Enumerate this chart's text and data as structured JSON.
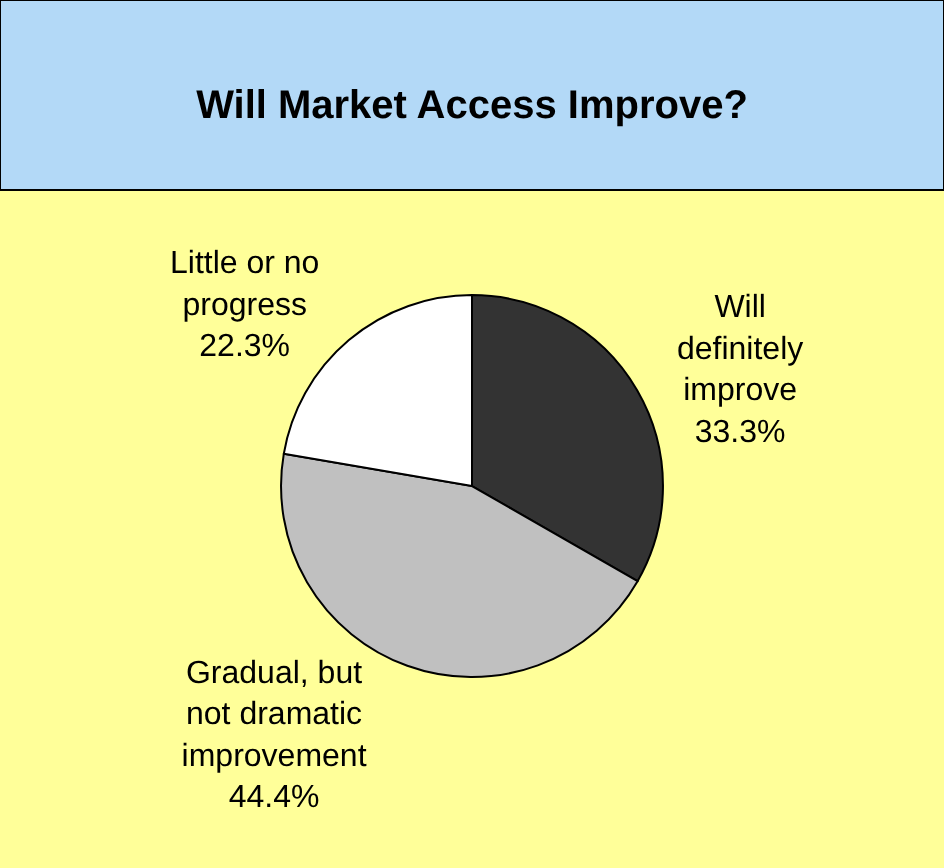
{
  "chart_data": {
    "type": "pie",
    "title": "Will Market Access Improve?",
    "categories": [
      "Will definitely improve",
      "Gradual, but not dramatic improvement",
      "Little or no progress"
    ],
    "values": [
      33.3,
      44.4,
      22.3
    ],
    "colors": [
      "#333333",
      "#c0c0c0",
      "#ffffff"
    ],
    "value_labels": [
      "33.3%",
      "44.4%",
      "22.3%"
    ],
    "legend": false
  }
}
